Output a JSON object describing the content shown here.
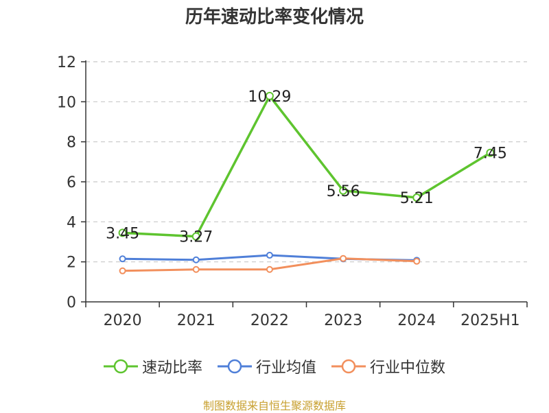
{
  "chart_data": {
    "type": "line",
    "title": "历年速动比率变化情况",
    "categories": [
      "2020",
      "2021",
      "2022",
      "2023",
      "2024",
      "2025H1"
    ],
    "ylim": [
      0,
      12
    ],
    "yticks": [
      0,
      2,
      4,
      6,
      8,
      10,
      12
    ],
    "grid": true,
    "legend_position": "bottom",
    "series": [
      {
        "name": "速动比率",
        "color": "#5ec42f",
        "values": [
          3.45,
          3.27,
          10.29,
          5.56,
          5.21,
          7.45
        ],
        "labels": [
          "3.45",
          "3.27",
          "10.29",
          "5.56",
          "5.21",
          "7.45"
        ]
      },
      {
        "name": "行业均值",
        "color": "#4f7fd8",
        "values": [
          2.15,
          2.1,
          2.33,
          2.15,
          2.08,
          null
        ]
      },
      {
        "name": "行业中位数",
        "color": "#f28f5c",
        "values": [
          1.55,
          1.62,
          1.62,
          2.17,
          2.03,
          null
        ]
      }
    ]
  },
  "source": "制图数据来自恒生聚源数据库"
}
